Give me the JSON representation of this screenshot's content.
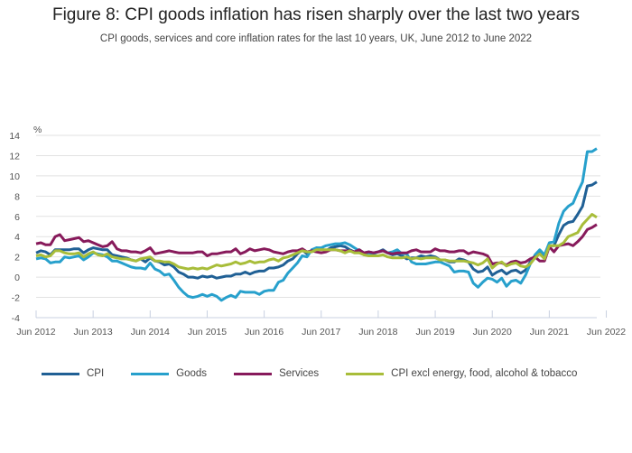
{
  "chart_data": {
    "type": "line",
    "title": "Figure 8: CPI goods inflation has risen sharply over the last two years",
    "subtitle": "CPI goods, services and core inflation rates for the last 10 years, UK, June 2012 to June 2022",
    "xlabel": "",
    "ylabel": "%",
    "ylim": [
      -4,
      14
    ],
    "yticks": [
      14,
      12,
      10,
      8,
      6,
      4,
      2,
      0,
      -2,
      -4
    ],
    "xticks": [
      "Jun 2012",
      "Jun 2013",
      "Jun 2014",
      "Jun 2015",
      "Jun 2016",
      "Jun 2017",
      "Jun 2018",
      "Jun 2019",
      "Jun 2020",
      "Jun 2021",
      "Jun 2022"
    ],
    "x_start": "Jun 2012",
    "x_end": "Jun 2022",
    "x_frequency": "monthly",
    "grid": true,
    "legend_position": "bottom",
    "series": [
      {
        "name": "CPI",
        "color": "#206095",
        "values": [
          2.4,
          2.6,
          2.5,
          2.2,
          2.7,
          2.7,
          2.7,
          2.7,
          2.8,
          2.8,
          2.4,
          2.7,
          2.9,
          2.8,
          2.7,
          2.7,
          2.2,
          2.1,
          2.0,
          1.9,
          1.7,
          1.6,
          1.8,
          1.5,
          1.9,
          1.6,
          1.5,
          1.2,
          1.3,
          1.0,
          0.5,
          0.3,
          0.0,
          0.0,
          -0.1,
          0.1,
          0.0,
          0.1,
          -0.1,
          0.0,
          0.1,
          0.1,
          0.3,
          0.3,
          0.5,
          0.3,
          0.5,
          0.6,
          0.6,
          0.9,
          0.9,
          1.0,
          1.2,
          1.6,
          1.8,
          2.3,
          2.7,
          2.3,
          2.6,
          2.9,
          2.8,
          2.6,
          2.9,
          3.0,
          3.1,
          3.0,
          2.7,
          2.5,
          2.7,
          2.4,
          2.5,
          2.4,
          2.5,
          2.7,
          2.4,
          2.2,
          2.3,
          2.1,
          1.8,
          1.9,
          1.9,
          2.1,
          2.0,
          2.1,
          2.0,
          1.7,
          1.7,
          1.5,
          1.5,
          1.8,
          1.7,
          1.5,
          0.8,
          0.5,
          0.6,
          1.0,
          0.2,
          0.5,
          0.7,
          0.3,
          0.6,
          0.7,
          0.4,
          0.7,
          1.5,
          2.1,
          2.5,
          2.0,
          3.1,
          3.1,
          4.2,
          5.1,
          5.4,
          5.5,
          6.2,
          7.0,
          9.0,
          9.1,
          9.4
        ]
      },
      {
        "name": "Goods",
        "color": "#27a0cc",
        "values": [
          1.8,
          1.9,
          1.8,
          1.4,
          1.5,
          1.5,
          2.0,
          1.9,
          2.0,
          2.1,
          1.7,
          2.0,
          2.4,
          2.3,
          2.2,
          2.0,
          1.6,
          1.6,
          1.4,
          1.2,
          1.0,
          0.9,
          0.9,
          0.8,
          1.4,
          0.8,
          0.6,
          0.2,
          0.3,
          -0.3,
          -1.0,
          -1.5,
          -1.9,
          -2.0,
          -1.9,
          -1.7,
          -1.9,
          -1.7,
          -1.9,
          -2.3,
          -2.0,
          -1.8,
          -2.0,
          -1.4,
          -1.5,
          -1.5,
          -1.5,
          -1.7,
          -1.4,
          -1.3,
          -1.3,
          -0.5,
          -0.3,
          0.4,
          0.9,
          1.4,
          2.1,
          2.0,
          2.7,
          2.9,
          2.9,
          3.1,
          3.2,
          3.3,
          3.3,
          3.4,
          3.2,
          2.9,
          2.6,
          2.2,
          2.4,
          2.3,
          2.5,
          2.6,
          2.4,
          2.5,
          2.7,
          2.3,
          2.3,
          1.5,
          1.3,
          1.3,
          1.3,
          1.4,
          1.5,
          1.5,
          1.3,
          1.1,
          0.5,
          0.6,
          0.6,
          0.5,
          -0.6,
          -1.0,
          -0.5,
          -0.1,
          -0.2,
          -0.5,
          -0.1,
          -0.9,
          -0.4,
          -0.3,
          -0.6,
          0.2,
          1.3,
          2.2,
          2.7,
          2.2,
          3.4,
          3.5,
          5.3,
          6.5,
          7.0,
          7.3,
          8.4,
          9.4,
          12.4,
          12.4,
          12.7
        ]
      },
      {
        "name": "Services",
        "color": "#871a5b",
        "values": [
          3.3,
          3.4,
          3.2,
          3.2,
          4.0,
          4.2,
          3.6,
          3.7,
          3.8,
          3.9,
          3.5,
          3.6,
          3.4,
          3.2,
          3.0,
          3.1,
          3.5,
          2.8,
          2.6,
          2.6,
          2.5,
          2.5,
          2.4,
          2.6,
          2.9,
          2.3,
          2.4,
          2.5,
          2.6,
          2.5,
          2.4,
          2.4,
          2.4,
          2.4,
          2.5,
          2.5,
          2.1,
          2.3,
          2.3,
          2.4,
          2.5,
          2.5,
          2.8,
          2.3,
          2.5,
          2.8,
          2.6,
          2.7,
          2.8,
          2.7,
          2.5,
          2.4,
          2.3,
          2.5,
          2.6,
          2.6,
          2.8,
          2.5,
          2.6,
          2.5,
          2.4,
          2.5,
          2.7,
          2.7,
          2.6,
          2.6,
          2.6,
          2.5,
          2.7,
          2.4,
          2.5,
          2.4,
          2.5,
          2.6,
          2.4,
          2.3,
          2.4,
          2.4,
          2.4,
          2.6,
          2.7,
          2.5,
          2.5,
          2.5,
          2.8,
          2.6,
          2.6,
          2.5,
          2.5,
          2.6,
          2.6,
          2.3,
          2.5,
          2.4,
          2.3,
          2.1,
          1.3,
          1.4,
          1.4,
          1.2,
          1.5,
          1.6,
          1.4,
          1.5,
          1.8,
          2.0,
          1.6,
          1.6,
          3.0,
          2.5,
          3.1,
          3.2,
          3.3,
          3.1,
          3.5,
          4.0,
          4.7,
          4.9,
          5.2
        ]
      },
      {
        "name": "CPI excl energy, food, alcohol & tobacco",
        "color": "#a8bd3a",
        "values": [
          2.1,
          2.2,
          2.0,
          2.1,
          2.6,
          2.6,
          2.4,
          2.3,
          2.3,
          2.4,
          2.0,
          2.3,
          2.5,
          2.2,
          2.1,
          2.3,
          2.0,
          1.9,
          1.8,
          1.8,
          1.7,
          1.6,
          1.8,
          1.9,
          2.0,
          1.6,
          1.6,
          1.5,
          1.5,
          1.3,
          1.0,
          0.9,
          0.8,
          0.9,
          0.8,
          0.9,
          0.8,
          1.0,
          1.2,
          1.1,
          1.2,
          1.3,
          1.5,
          1.3,
          1.4,
          1.6,
          1.4,
          1.5,
          1.5,
          1.7,
          1.8,
          1.6,
          1.9,
          2.0,
          2.2,
          2.4,
          2.6,
          2.5,
          2.5,
          2.7,
          2.7,
          2.7,
          2.7,
          2.7,
          2.6,
          2.4,
          2.6,
          2.4,
          2.4,
          2.2,
          2.1,
          2.1,
          2.1,
          2.2,
          2.0,
          1.9,
          1.9,
          1.9,
          2.0,
          1.8,
          1.9,
          1.8,
          1.9,
          1.9,
          1.9,
          1.7,
          1.7,
          1.6,
          1.6,
          1.6,
          1.6,
          1.5,
          1.4,
          1.2,
          1.4,
          1.8,
          0.9,
          1.3,
          1.5,
          1.1,
          1.3,
          1.4,
          1.1,
          1.0,
          1.3,
          1.9,
          2.3,
          1.8,
          3.1,
          3.1,
          3.1,
          3.4,
          4.0,
          4.2,
          4.4,
          5.2,
          5.7,
          6.2,
          5.9
        ]
      }
    ]
  }
}
